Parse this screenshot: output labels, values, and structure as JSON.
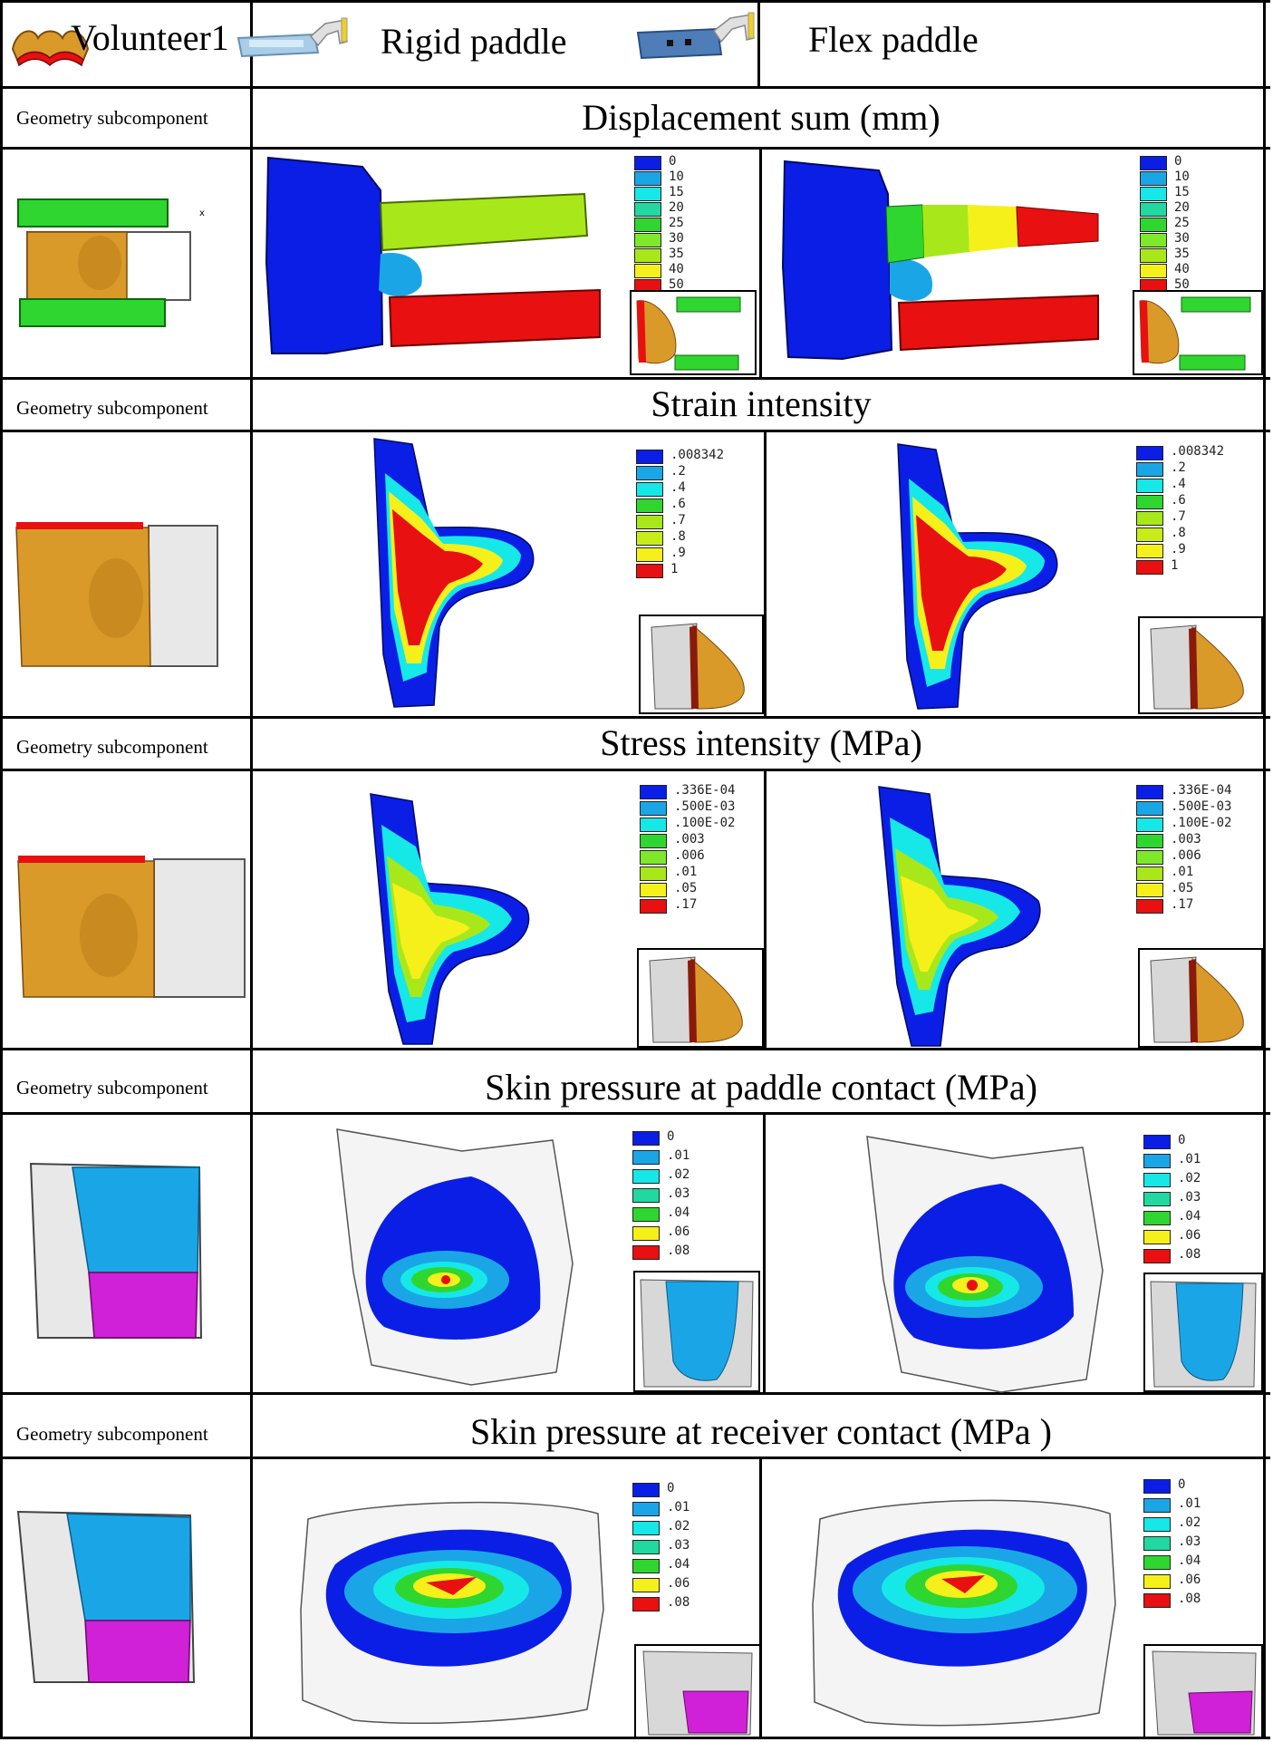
{
  "header": {
    "volunteer": "Volunteer1",
    "rigid": "Rigid paddle",
    "flex": "Flex paddle"
  },
  "geometry_label": "Geometry subcomponent",
  "sections": [
    {
      "title": "Displacement sum (mm)",
      "legend": [
        "0",
        "10",
        "15",
        "20",
        "25",
        "30",
        "35",
        "40",
        "50"
      ]
    },
    {
      "title": "Strain intensity",
      "legend": [
        ".008342",
        ".2",
        ".4",
        ".6",
        ".7",
        ".8",
        ".9",
        "1"
      ]
    },
    {
      "title": "Stress intensity (MPa)",
      "legend": [
        ".336E-04",
        ".500E-03",
        ".100E-02",
        ".003",
        ".006",
        ".01",
        ".05",
        ".17"
      ]
    },
    {
      "title": "Skin pressure at paddle contact (MPa)",
      "legend": [
        "0",
        ".01",
        ".02",
        ".03",
        ".04",
        ".06",
        ".08"
      ]
    },
    {
      "title": "Skin pressure at receiver contact (MPa )",
      "legend": [
        "0",
        ".01",
        ".02",
        ".03",
        ".04",
        ".06",
        ".08"
      ]
    }
  ],
  "colors": {
    "blue": "#0a1ee6",
    "sky": "#1aa6e6",
    "cyan": "#16e8e8",
    "teal": "#20d8a0",
    "green": "#2fd62f",
    "lime": "#a8e81a",
    "yellow": "#f6f01a",
    "red": "#e81010",
    "tan": "#d99a2a",
    "magenta": "#d020d8"
  }
}
